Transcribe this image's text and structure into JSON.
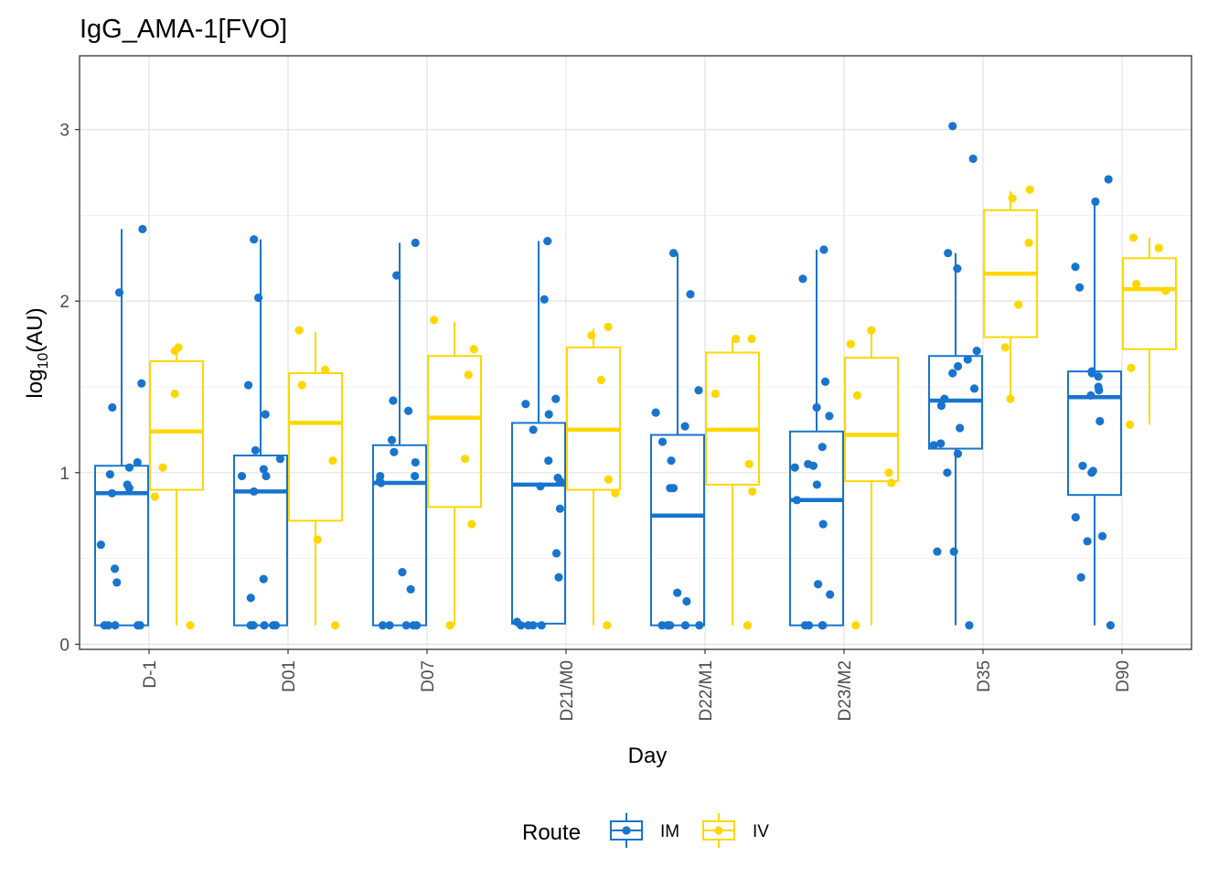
{
  "chart_data": {
    "type": "box",
    "title": "IgG_AMA-1[FVO]",
    "xlabel": "Day",
    "ylabel_prefix": "log",
    "ylabel_subscript": "10",
    "ylabel_suffix": "(AU)",
    "ylim": [
      -0.03,
      3.43
    ],
    "yticks": [
      0,
      1,
      2,
      3
    ],
    "ytick_labels": [
      "0",
      "1",
      "2",
      "3"
    ],
    "categories": [
      "D-1",
      "D01",
      "D07",
      "D21/M0",
      "D22/M1",
      "D23/M2",
      "D35",
      "D90"
    ],
    "grid": true,
    "legend": {
      "title": "Route",
      "position": "bottom"
    },
    "series": [
      {
        "name": "IM",
        "color": "#1874CD",
        "boxes": [
          {
            "min": 0.11,
            "q1": 0.11,
            "median": 0.88,
            "q3": 1.04,
            "max": 2.42,
            "points": [
              2.42,
              2.05,
              1.52,
              1.38,
              1.06,
              1.03,
              0.99,
              0.93,
              0.91,
              0.88,
              0.58,
              0.44,
              0.36,
              0.11,
              0.11,
              0.11,
              0.11,
              0.11
            ]
          },
          {
            "min": 0.11,
            "q1": 0.11,
            "median": 0.89,
            "q3": 1.1,
            "max": 2.36,
            "points": [
              2.36,
              2.02,
              1.51,
              1.34,
              1.13,
              1.08,
              1.02,
              0.98,
              0.98,
              0.89,
              0.38,
              0.27,
              0.11,
              0.11,
              0.11,
              0.11,
              0.11,
              0.11
            ]
          },
          {
            "min": 0.11,
            "q1": 0.11,
            "median": 0.94,
            "q3": 1.16,
            "max": 2.34,
            "points": [
              2.34,
              2.15,
              1.42,
              1.36,
              1.19,
              1.12,
              1.06,
              0.98,
              0.98,
              0.95,
              0.94,
              0.42,
              0.32,
              0.11,
              0.11,
              0.11,
              0.11,
              0.11
            ]
          },
          {
            "min": 0.11,
            "q1": 0.12,
            "median": 0.93,
            "q3": 1.29,
            "max": 2.35,
            "points": [
              2.35,
              2.01,
              1.43,
              1.4,
              1.34,
              1.25,
              1.07,
              0.97,
              0.95,
              0.92,
              0.79,
              0.53,
              0.39,
              0.13,
              0.11,
              0.11,
              0.11,
              0.11
            ]
          },
          {
            "min": 0.11,
            "q1": 0.11,
            "median": 0.75,
            "q3": 1.22,
            "max": 2.28,
            "points": [
              2.28,
              2.04,
              1.48,
              1.35,
              1.27,
              1.18,
              1.07,
              0.91,
              0.91,
              0.3,
              0.25,
              0.11,
              0.11,
              0.11,
              0.11,
              0.11,
              0.11
            ]
          },
          {
            "min": 0.11,
            "q1": 0.11,
            "median": 0.84,
            "q3": 1.24,
            "max": 2.3,
            "points": [
              2.3,
              2.13,
              1.53,
              1.38,
              1.33,
              1.15,
              1.05,
              1.04,
              1.03,
              0.93,
              0.84,
              0.7,
              0.35,
              0.29,
              0.11,
              0.11,
              0.11,
              0.11
            ]
          },
          {
            "min": 0.11,
            "q1": 1.14,
            "median": 1.42,
            "q3": 1.68,
            "max": 2.28,
            "points": [
              3.02,
              2.83,
              2.28,
              2.19,
              1.71,
              1.66,
              1.62,
              1.58,
              1.49,
              1.43,
              1.39,
              1.26,
              1.17,
              1.16,
              1.11,
              1.0,
              0.54,
              0.54,
              0.11
            ]
          },
          {
            "min": 0.11,
            "q1": 0.87,
            "median": 1.44,
            "q3": 1.59,
            "max": 2.58,
            "points": [
              2.71,
              2.58,
              2.2,
              2.08,
              1.59,
              1.58,
              1.56,
              1.5,
              1.48,
              1.45,
              1.3,
              1.04,
              1.01,
              1.0,
              0.74,
              0.63,
              0.6,
              0.39,
              0.11
            ]
          }
        ]
      },
      {
        "name": "IV",
        "color": "#FFD700",
        "boxes": [
          {
            "min": 0.11,
            "q1": 0.9,
            "median": 1.24,
            "q3": 1.65,
            "max": 1.72,
            "points": [
              1.73,
              1.71,
              1.46,
              1.03,
              0.86,
              0.11
            ]
          },
          {
            "min": 0.11,
            "q1": 0.72,
            "median": 1.29,
            "q3": 1.58,
            "max": 1.82,
            "points": [
              1.83,
              1.6,
              1.51,
              1.07,
              0.61,
              0.11
            ]
          },
          {
            "min": 0.11,
            "q1": 0.8,
            "median": 1.32,
            "q3": 1.68,
            "max": 1.88,
            "points": [
              1.89,
              1.72,
              1.57,
              1.08,
              0.7,
              0.11
            ]
          },
          {
            "min": 0.11,
            "q1": 0.9,
            "median": 1.25,
            "q3": 1.73,
            "max": 1.84,
            "points": [
              1.85,
              1.8,
              1.54,
              0.96,
              0.88,
              0.11
            ]
          },
          {
            "min": 0.11,
            "q1": 0.93,
            "median": 1.25,
            "q3": 1.7,
            "max": 1.78,
            "points": [
              1.78,
              1.78,
              1.46,
              1.05,
              0.89,
              0.11
            ]
          },
          {
            "min": 0.11,
            "q1": 0.95,
            "median": 1.22,
            "q3": 1.67,
            "max": 1.83,
            "points": [
              1.83,
              1.75,
              1.45,
              1.0,
              0.94,
              0.11
            ]
          },
          {
            "min": 1.43,
            "q1": 1.79,
            "median": 2.16,
            "q3": 2.53,
            "max": 2.64,
            "points": [
              2.65,
              2.6,
              2.34,
              1.98,
              1.73,
              1.43
            ]
          },
          {
            "min": 1.28,
            "q1": 1.72,
            "median": 2.07,
            "q3": 2.25,
            "max": 2.37,
            "points": [
              2.37,
              2.31,
              2.1,
              2.06,
              1.61,
              1.28
            ]
          }
        ]
      }
    ]
  }
}
